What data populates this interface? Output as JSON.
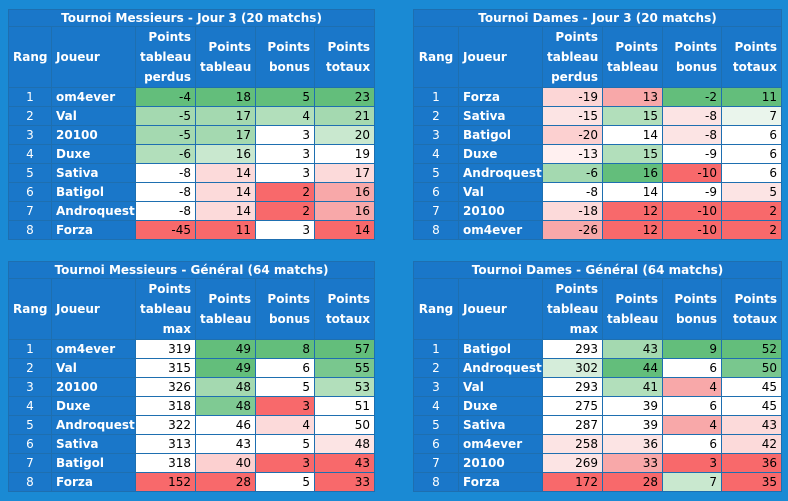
{
  "headers": {
    "rank": "Rang",
    "player": "Joueur",
    "lost": "Points tableau perdus",
    "max": "Points tableau max",
    "board": "Points tableau",
    "bonus": "Points bonus",
    "total": "Points totaux"
  },
  "tables": [
    {
      "title": "Tournoi Messieurs - Jour 3 (20 matchs)",
      "first_col": "lost",
      "rows": [
        {
          "rank": "1",
          "player": "om4ever",
          "c1": "-4",
          "board": "18",
          "bonus": "5",
          "total": "23"
        },
        {
          "rank": "2",
          "player": "Val",
          "c1": "-5",
          "board": "17",
          "bonus": "4",
          "total": "21"
        },
        {
          "rank": "3",
          "player": "20100",
          "c1": "-5",
          "board": "17",
          "bonus": "3",
          "total": "20"
        },
        {
          "rank": "4",
          "player": "Duxe",
          "c1": "-6",
          "board": "16",
          "bonus": "3",
          "total": "19"
        },
        {
          "rank": "5",
          "player": "Sativa",
          "c1": "-8",
          "board": "14",
          "bonus": "3",
          "total": "17"
        },
        {
          "rank": "6",
          "player": "Batigol",
          "c1": "-8",
          "board": "14",
          "bonus": "2",
          "total": "16"
        },
        {
          "rank": "7",
          "player": "Androquest",
          "c1": "-8",
          "board": "14",
          "bonus": "2",
          "total": "16"
        },
        {
          "rank": "8",
          "player": "Forza",
          "c1": "-45",
          "board": "11",
          "bonus": "3",
          "total": "14"
        }
      ]
    },
    {
      "title": "Tournoi Dames - Jour 3 (20 matchs)",
      "first_col": "lost",
      "rows": [
        {
          "rank": "1",
          "player": "Forza",
          "c1": "-19",
          "board": "13",
          "bonus": "-2",
          "total": "11"
        },
        {
          "rank": "2",
          "player": "Sativa",
          "c1": "-15",
          "board": "15",
          "bonus": "-8",
          "total": "7"
        },
        {
          "rank": "3",
          "player": "Batigol",
          "c1": "-20",
          "board": "14",
          "bonus": "-8",
          "total": "6"
        },
        {
          "rank": "4",
          "player": "Duxe",
          "c1": "-13",
          "board": "15",
          "bonus": "-9",
          "total": "6"
        },
        {
          "rank": "5",
          "player": "Androquest",
          "c1": "-6",
          "board": "16",
          "bonus": "-10",
          "total": "6"
        },
        {
          "rank": "6",
          "player": "Val",
          "c1": "-8",
          "board": "14",
          "bonus": "-9",
          "total": "5"
        },
        {
          "rank": "7",
          "player": "20100",
          "c1": "-18",
          "board": "12",
          "bonus": "-10",
          "total": "2"
        },
        {
          "rank": "8",
          "player": "om4ever",
          "c1": "-26",
          "board": "12",
          "bonus": "-10",
          "total": "2"
        }
      ]
    },
    {
      "title": "Tournoi Messieurs - Général (64 matchs)",
      "first_col": "max",
      "rows": [
        {
          "rank": "1",
          "player": "om4ever",
          "c1": "319",
          "board": "49",
          "bonus": "8",
          "total": "57"
        },
        {
          "rank": "2",
          "player": "Val",
          "c1": "315",
          "board": "49",
          "bonus": "6",
          "total": "55"
        },
        {
          "rank": "3",
          "player": "20100",
          "c1": "326",
          "board": "48",
          "bonus": "5",
          "total": "53"
        },
        {
          "rank": "4",
          "player": "Duxe",
          "c1": "318",
          "board": "48",
          "bonus": "3",
          "total": "51"
        },
        {
          "rank": "5",
          "player": "Androquest",
          "c1": "322",
          "board": "46",
          "bonus": "4",
          "total": "50"
        },
        {
          "rank": "6",
          "player": "Sativa",
          "c1": "313",
          "board": "43",
          "bonus": "5",
          "total": "48"
        },
        {
          "rank": "7",
          "player": "Batigol",
          "c1": "318",
          "board": "40",
          "bonus": "3",
          "total": "43"
        },
        {
          "rank": "8",
          "player": "Forza",
          "c1": "152",
          "board": "28",
          "bonus": "5",
          "total": "33"
        }
      ]
    },
    {
      "title": "Tournoi Dames - Général (64 matchs)",
      "first_col": "max",
      "rows": [
        {
          "rank": "1",
          "player": "Batigol",
          "c1": "293",
          "board": "43",
          "bonus": "9",
          "total": "52"
        },
        {
          "rank": "2",
          "player": "Androquest",
          "c1": "302",
          "board": "44",
          "bonus": "6",
          "total": "50"
        },
        {
          "rank": "3",
          "player": "Val",
          "c1": "293",
          "board": "41",
          "bonus": "4",
          "total": "45"
        },
        {
          "rank": "4",
          "player": "Duxe",
          "c1": "275",
          "board": "39",
          "bonus": "6",
          "total": "45"
        },
        {
          "rank": "5",
          "player": "Sativa",
          "c1": "287",
          "board": "39",
          "bonus": "4",
          "total": "43"
        },
        {
          "rank": "6",
          "player": "om4ever",
          "c1": "258",
          "board": "36",
          "bonus": "6",
          "total": "42"
        },
        {
          "rank": "7",
          "player": "20100",
          "c1": "269",
          "board": "33",
          "bonus": "3",
          "total": "36"
        },
        {
          "rank": "8",
          "player": "Forza",
          "c1": "172",
          "board": "28",
          "bonus": "7",
          "total": "35"
        }
      ]
    }
  ],
  "cell_colors": [
    [
      [
        "#63be7b",
        "#63be7b",
        "#63be7b",
        "#63be7b"
      ],
      [
        "#a4d9b0",
        "#a4d9b0",
        "#b2dfbb",
        "#a4d9b0"
      ],
      [
        "#a4d9b0",
        "#a4d9b0",
        "#ffffff",
        "#c9e8cf"
      ],
      [
        "#b2dfbb",
        "#c9e8cf",
        "#ffffff",
        "#ffffff"
      ],
      [
        "#ffffff",
        "#fcdada",
        "#ffffff",
        "#fcdada"
      ],
      [
        "#ffffff",
        "#fcdada",
        "#f8696b",
        "#f8a8a9"
      ],
      [
        "#ffffff",
        "#fcdada",
        "#f8696b",
        "#f8a8a9"
      ],
      [
        "#f8696b",
        "#f8696b",
        "#ffffff",
        "#f8696b"
      ]
    ],
    [
      [
        "#fcd6d6",
        "#f8a8a9",
        "#63be7b",
        "#63be7b"
      ],
      [
        "#fce4e4",
        "#b2dfbb",
        "#fce4e4",
        "#eaf5ec"
      ],
      [
        "#fcd0d0",
        "#ffffff",
        "#fce4e4",
        "#ffffff"
      ],
      [
        "#fff0f0",
        "#b2dfbb",
        "#ffffff",
        "#ffffff"
      ],
      [
        "#a4d9b0",
        "#63be7b",
        "#f8696b",
        "#ffffff"
      ],
      [
        "#ffffff",
        "#ffffff",
        "#ffffff",
        "#fce4e4"
      ],
      [
        "#fcdada",
        "#f8696b",
        "#f8696b",
        "#f8696b"
      ],
      [
        "#f8a8a9",
        "#f8696b",
        "#f8696b",
        "#f8696b"
      ]
    ],
    [
      [
        "#ffffff",
        "#63be7b",
        "#63be7b",
        "#63be7b"
      ],
      [
        "#ffffff",
        "#63be7b",
        "#ffffff",
        "#79c78e"
      ],
      [
        "#ffffff",
        "#a4d9b0",
        "#ffffff",
        "#b2dfbb"
      ],
      [
        "#ffffff",
        "#7fca93",
        "#f8696b",
        "#ffffff"
      ],
      [
        "#ffffff",
        "#ffffff",
        "#fcdada",
        "#ffffff"
      ],
      [
        "#ffffff",
        "#ffffff",
        "#ffffff",
        "#fce4e4"
      ],
      [
        "#ffffff",
        "#fcd0d0",
        "#f8696b",
        "#f8696b"
      ],
      [
        "#f8696b",
        "#f8696b",
        "#ffffff",
        "#f8696b"
      ]
    ],
    [
      [
        "#ffffff",
        "#a4d9b0",
        "#63be7b",
        "#63be7b"
      ],
      [
        "#d5edda",
        "#63be7b",
        "#ffffff",
        "#79c78e"
      ],
      [
        "#ffffff",
        "#b2dfbb",
        "#f8a8a9",
        "#ffffff"
      ],
      [
        "#ffffff",
        "#ffffff",
        "#ffffff",
        "#ffffff"
      ],
      [
        "#ffffff",
        "#ffffff",
        "#f8a8a9",
        "#fcdada"
      ],
      [
        "#fce4e4",
        "#fce4e4",
        "#ffffff",
        "#fcdada"
      ],
      [
        "#fce4e4",
        "#f8a8a9",
        "#f8696b",
        "#f8696b"
      ],
      [
        "#f8696b",
        "#f8696b",
        "#c9e8cf",
        "#f8696b"
      ]
    ]
  ]
}
